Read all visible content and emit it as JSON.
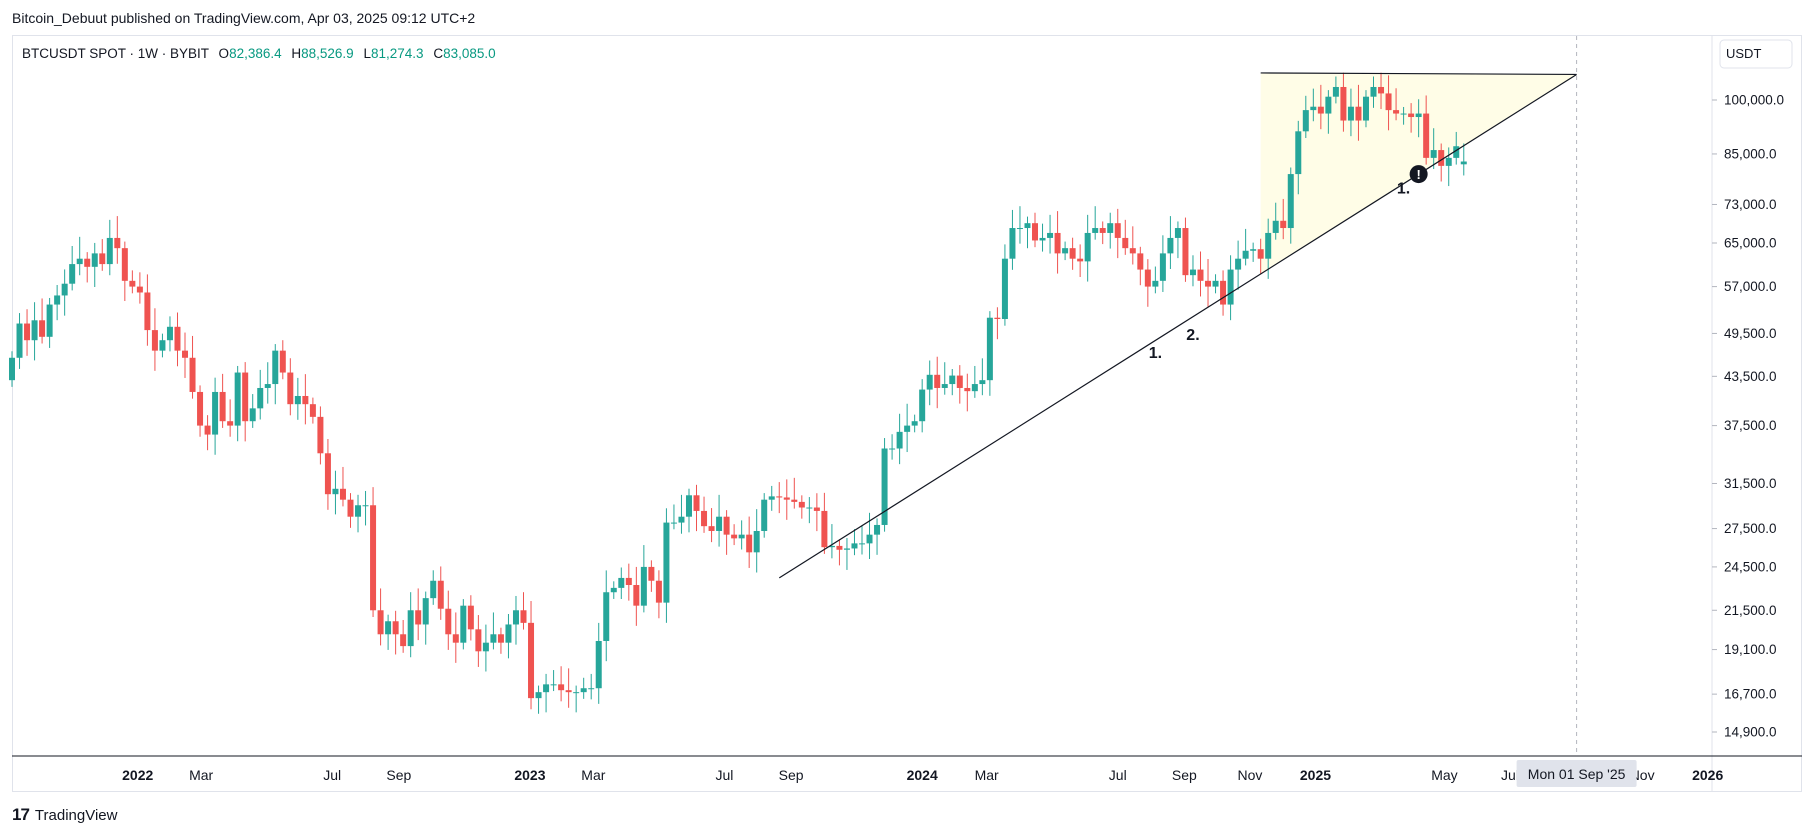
{
  "header": {
    "publisher_line": "Bitcoin_Debuut published on TradingView.com, Apr 03, 2025 09:12 UTC+2"
  },
  "legend": {
    "symbol": "BTCUSDT SPOT · 1W · BYBIT",
    "o_label": "O",
    "o": "82,386.4",
    "h_label": "H",
    "h": "88,526.9",
    "l_label": "L",
    "l": "81,274.3",
    "c_label": "C",
    "c": "83,085.0"
  },
  "footer": {
    "brand": "TradingView",
    "logo_glyph": "17"
  },
  "colors": {
    "up": "#26a69a",
    "down": "#ef5350",
    "grid": "#e0e3eb",
    "zone": "#fffde7",
    "line": "#131722",
    "label_bg": "#e0e3eb"
  },
  "chart_data": {
    "type": "candlestick",
    "scale": "log",
    "currency_label": "USDT",
    "x_range": [
      "2021-09-06",
      "2026-01-05"
    ],
    "y_ticks": [
      100000,
      85000,
      73000,
      65000,
      57000,
      49500,
      43500,
      37500,
      31500,
      27500,
      24500,
      21500,
      19100,
      16700,
      14900
    ],
    "y_tick_labels": [
      "100,000.0",
      "85,000.0",
      "73,000.0",
      "65,000.0",
      "57,000.0",
      "49,500.0",
      "43,500.0",
      "37,500.0",
      "31,500.0",
      "27,500.0",
      "24,500.0",
      "21,500.0",
      "19,100.0",
      "16,700.0",
      "14,900.0"
    ],
    "x_ticks": [
      {
        "label": "2022",
        "date": "2022-01-01",
        "bold": true
      },
      {
        "label": "Mar",
        "date": "2022-03-01",
        "bold": false
      },
      {
        "label": "Jul",
        "date": "2022-07-01",
        "bold": false
      },
      {
        "label": "Sep",
        "date": "2022-09-01",
        "bold": false
      },
      {
        "label": "2023",
        "date": "2023-01-01",
        "bold": true
      },
      {
        "label": "Mar",
        "date": "2023-03-01",
        "bold": false
      },
      {
        "label": "Jul",
        "date": "2023-07-01",
        "bold": false
      },
      {
        "label": "Sep",
        "date": "2023-09-01",
        "bold": false
      },
      {
        "label": "2024",
        "date": "2024-01-01",
        "bold": true
      },
      {
        "label": "Mar",
        "date": "2024-03-01",
        "bold": false
      },
      {
        "label": "Jul",
        "date": "2024-07-01",
        "bold": false
      },
      {
        "label": "Sep",
        "date": "2024-09-01",
        "bold": false
      },
      {
        "label": "Nov",
        "date": "2024-11-01",
        "bold": false
      },
      {
        "label": "2025",
        "date": "2025-01-01",
        "bold": true
      },
      {
        "label": "May",
        "date": "2025-05-01",
        "bold": false
      },
      {
        "label": "Jul",
        "date": "2025-07-01",
        "bold": false
      },
      {
        "label": "Nov",
        "date": "2025-11-01",
        "bold": false
      },
      {
        "label": "2026",
        "date": "2026-01-01",
        "bold": true
      }
    ],
    "crosshair_label": "Mon 01 Sep '25",
    "crosshair_date": "2025-09-01",
    "trendline": {
      "start": [
        "2023-08-21",
        23700
      ],
      "end": [
        "2025-09-01",
        108000
      ]
    },
    "resistance": {
      "start": [
        "2024-11-11",
        108500
      ],
      "end": [
        "2025-09-01",
        108000
      ]
    },
    "zone": {
      "from": "2024-11-11",
      "to": "2025-09-01",
      "top": 108500
    },
    "annotations": [
      {
        "text": "1.",
        "date": "2024-08-05",
        "price": 46000
      },
      {
        "text": "2.",
        "date": "2024-09-09",
        "price": 48500
      },
      {
        "text": "1.",
        "date": "2025-03-24",
        "price": 75500
      }
    ],
    "alert_marker": {
      "date": "2025-04-07",
      "price": 80000,
      "glyph": "!"
    },
    "week_start": "2021-09-06",
    "closes": [
      46000,
      51000,
      48500,
      51500,
      49000,
      54000,
      55500,
      57500,
      61000,
      62000,
      60500,
      63000,
      61000,
      66000,
      64000,
      58000,
      57000,
      56000,
      50000,
      47000,
      48500,
      50500,
      47000,
      46000,
      41500,
      37500,
      36500,
      41500,
      38000,
      37500,
      44000,
      38000,
      39500,
      42000,
      42500,
      47000,
      44000,
      40000,
      41000,
      40000,
      38500,
      34500,
      30500,
      31000,
      30000,
      28500,
      29500,
      29500,
      21500,
      20000,
      20800,
      20000,
      19300,
      21500,
      20600,
      22300,
      23500,
      21600,
      20000,
      19500,
      21800,
      20300,
      19000,
      19500,
      20000,
      19500,
      20600,
      21500,
      20700,
      16500,
      16800,
      17200,
      17200,
      16900,
      16800,
      16800,
      17000,
      17000,
      19600,
      22700,
      23000,
      23700,
      23200,
      21800,
      24500,
      23500,
      22000,
      28000,
      28000,
      28500,
      30400,
      29000,
      27700,
      27300,
      28500,
      27000,
      26700,
      27000,
      25600,
      27300,
      30000,
      30300,
      30200,
      30000,
      29800,
      29300,
      29300,
      29000,
      26000,
      26100,
      25800,
      25900,
      26300,
      26300,
      27000,
      27800,
      35000,
      35000,
      36800,
      37500,
      38000,
      41800,
      43700,
      42000,
      42500,
      43600,
      42000,
      41600,
      42500,
      43000,
      51900,
      51700,
      62000,
      68000,
      68000,
      69000,
      65500,
      66000,
      67000,
      63000,
      64000,
      62000,
      61500,
      67000,
      68000,
      67000,
      69000,
      66000,
      64000,
      63000,
      60000,
      57000,
      58000,
      63000,
      66000,
      68000,
      59000,
      60000,
      58000,
      57000,
      58000,
      54000,
      60000,
      62000,
      63500,
      63800,
      62000,
      67000,
      69500,
      68000,
      80000,
      91000,
      97000,
      98000,
      96000,
      101000,
      104000,
      94000,
      98000,
      94000,
      101000,
      104000,
      102000,
      97000,
      96000,
      96000,
      95000,
      96000,
      84000,
      86000,
      82000,
      84000,
      87000,
      83085
    ],
    "opens": [
      43000,
      46000,
      51000,
      48500,
      51500,
      49000,
      54000,
      55500,
      57500,
      61000,
      62000,
      60500,
      63000,
      61000,
      66000,
      64000,
      58000,
      57000,
      56000,
      50000,
      47000,
      48500,
      50500,
      47000,
      46000,
      41500,
      37500,
      36500,
      41500,
      38000,
      37500,
      44000,
      38000,
      39500,
      42000,
      42500,
      47000,
      44000,
      40000,
      41000,
      40000,
      38500,
      34500,
      30500,
      31000,
      30000,
      28500,
      29500,
      29500,
      21500,
      20000,
      20800,
      20000,
      19300,
      21500,
      20600,
      22300,
      23500,
      21600,
      20000,
      19500,
      21800,
      20300,
      19000,
      19500,
      20000,
      19500,
      20600,
      21500,
      20700,
      16500,
      16800,
      17200,
      17200,
      16900,
      16800,
      16800,
      17000,
      17000,
      19600,
      22700,
      23000,
      23700,
      23200,
      21800,
      24500,
      23500,
      22000,
      28000,
      28000,
      28500,
      30400,
      29000,
      27700,
      27300,
      28500,
      27000,
      26700,
      27000,
      25600,
      27300,
      30000,
      30300,
      30200,
      30000,
      29800,
      29300,
      29300,
      29000,
      26000,
      26100,
      25800,
      25900,
      26300,
      26300,
      27000,
      27800,
      35000,
      35000,
      36800,
      37500,
      38000,
      41800,
      43700,
      42000,
      42500,
      43600,
      42000,
      41600,
      42500,
      43000,
      51900,
      51700,
      62000,
      68000,
      68000,
      69000,
      65500,
      66000,
      67000,
      63000,
      64000,
      62000,
      61500,
      67000,
      68000,
      67000,
      69000,
      66000,
      64000,
      63000,
      60000,
      57000,
      58000,
      63000,
      66000,
      68000,
      59000,
      60000,
      58000,
      57000,
      58000,
      54000,
      60000,
      62000,
      63500,
      63800,
      62000,
      67000,
      69500,
      68000,
      80000,
      91000,
      97000,
      98000,
      96000,
      101000,
      104000,
      94000,
      98000,
      94000,
      101000,
      104000,
      102000,
      97000,
      96000,
      96000,
      95000,
      96000,
      84000,
      86000,
      82000,
      84000,
      82386
    ]
  }
}
